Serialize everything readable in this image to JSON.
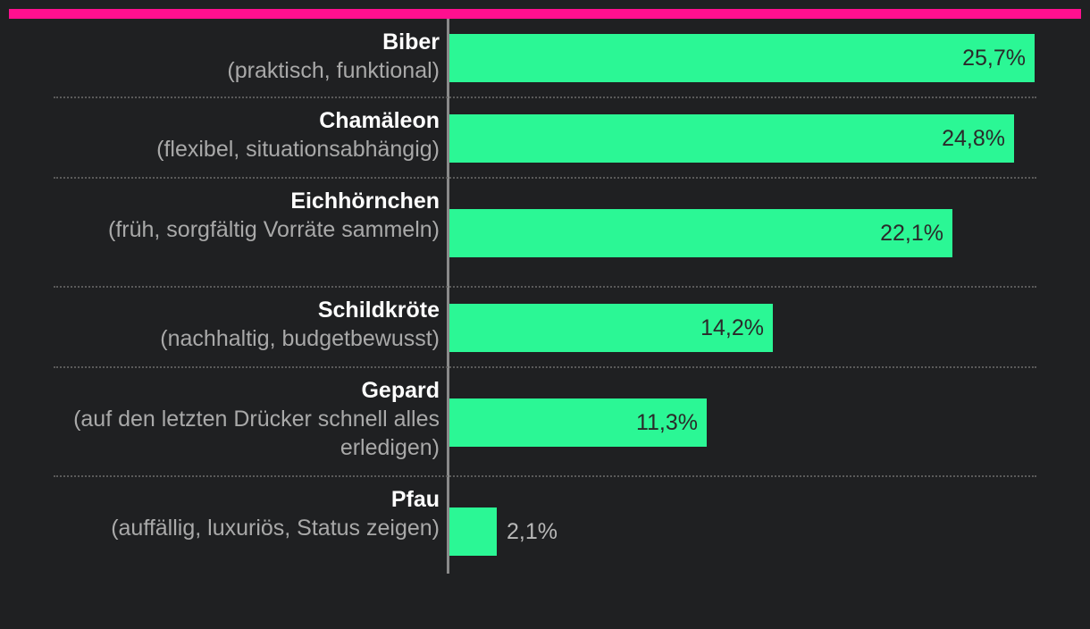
{
  "colors": {
    "background": "#1f2022",
    "accent": "#ff0f8f",
    "bar": "#2bf795",
    "axis": "#8a8a8a"
  },
  "chart_data": {
    "type": "bar",
    "orientation": "horizontal",
    "categories": [
      {
        "name": "Biber",
        "description": "(praktisch, funktional)",
        "value": 25.7,
        "label": "25,7%"
      },
      {
        "name": "Chamäleon",
        "description": "(flexibel, situationsabhängig)",
        "value": 24.8,
        "label": "24,8%"
      },
      {
        "name": "Eichhörnchen",
        "description": "(früh, sorgfältig Vorräte sammeln)",
        "value": 22.1,
        "label": "22,1%"
      },
      {
        "name": "Schildkröte",
        "description": "(nachhaltig, budgetbewusst)",
        "value": 14.2,
        "label": "14,2%"
      },
      {
        "name": "Gepard",
        "description": "(auf den letzten Drücker schnell alles erledigen)",
        "value": 11.3,
        "label": "11,3%"
      },
      {
        "name": "Pfau",
        "description": "(auffällig, luxuriös, Status zeigen)",
        "value": 2.1,
        "label": "2,1%"
      }
    ],
    "xlim": [
      0,
      26.5
    ],
    "grid": false,
    "legend": "none"
  }
}
